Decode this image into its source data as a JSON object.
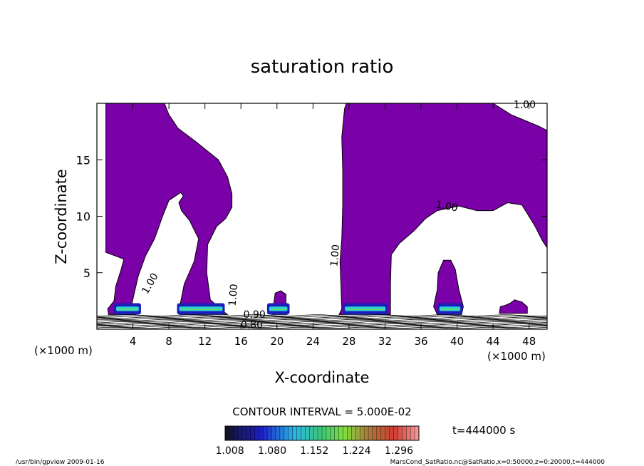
{
  "chart_data": {
    "type": "contour",
    "title": "saturation ratio",
    "xlabel": "X-coordinate",
    "ylabel": "Z-coordinate",
    "x_unit_left": "(×1000 m)",
    "x_unit_right": "(×1000 m)",
    "xlim": [
      0,
      50
    ],
    "ylim": [
      0,
      20
    ],
    "xticks": [
      4,
      8,
      12,
      16,
      20,
      24,
      28,
      32,
      36,
      40,
      44,
      48
    ],
    "yticks": [
      5,
      10,
      15
    ],
    "fill_color": "#7a00a8",
    "contour_labels": [
      "1.00",
      "1.00",
      "1.00",
      "1.00",
      "1.00",
      "0.90",
      "0.80"
    ],
    "contour_interval": "CONTOUR INTERVAL = 5.000E-02",
    "colorbar": {
      "ticks": [
        "1.008",
        "1.080",
        "1.152",
        "1.224",
        "1.296"
      ],
      "range": [
        1.0,
        1.33
      ]
    },
    "time_label": "t=444000 s",
    "saturated_regions": [
      [
        [
          1,
          20
        ],
        [
          7.5,
          20
        ],
        [
          8,
          19
        ],
        [
          9,
          17.8
        ],
        [
          11,
          16.6
        ],
        [
          13.5,
          15
        ],
        [
          14.5,
          13.5
        ],
        [
          15,
          12
        ],
        [
          15,
          10.8
        ],
        [
          14.3,
          9.8
        ],
        [
          13.3,
          9.1
        ],
        [
          12.3,
          7.5
        ],
        [
          12.2,
          5
        ],
        [
          12.6,
          2.6
        ],
        [
          14,
          1.6
        ],
        [
          14.5,
          1.3
        ],
        [
          9.2,
          1.3
        ],
        [
          9.2,
          2
        ],
        [
          9.7,
          4
        ],
        [
          10.8,
          6
        ],
        [
          11.3,
          8
        ],
        [
          10.3,
          9.6
        ],
        [
          9.4,
          10.5
        ],
        [
          9.1,
          11.2
        ],
        [
          9.6,
          11.8
        ],
        [
          9.3,
          12.1
        ],
        [
          8,
          11.4
        ],
        [
          7.3,
          10
        ],
        [
          6.4,
          8
        ],
        [
          5.4,
          6.5
        ],
        [
          4.6,
          4.7
        ],
        [
          4.1,
          3
        ],
        [
          3.8,
          1.9
        ],
        [
          4.3,
          1.3
        ],
        [
          1.3,
          1.3
        ],
        [
          1.2,
          1.8
        ],
        [
          1.9,
          2.5
        ],
        [
          2.1,
          3.8
        ],
        [
          2.7,
          5.3
        ],
        [
          3,
          6.2
        ],
        [
          1,
          6.8
        ]
      ],
      [
        [
          27.7,
          20
        ],
        [
          35,
          20
        ],
        [
          44,
          20
        ],
        [
          46,
          19
        ],
        [
          47.5,
          18.5
        ],
        [
          49,
          18
        ],
        [
          50,
          17.6
        ],
        [
          50,
          7.2
        ],
        [
          49.5,
          7.8
        ],
        [
          48.6,
          9.2
        ],
        [
          47.2,
          11
        ],
        [
          45.6,
          11.2
        ],
        [
          44,
          10.5
        ],
        [
          42.2,
          10.5
        ],
        [
          40.2,
          10.9
        ],
        [
          37.8,
          10.5
        ],
        [
          36.5,
          9.8
        ],
        [
          35.2,
          8.7
        ],
        [
          33.6,
          7.6
        ],
        [
          32.7,
          6.6
        ],
        [
          32.6,
          4
        ],
        [
          32.6,
          1.3
        ],
        [
          26.9,
          1.3
        ],
        [
          27.2,
          1.8
        ],
        [
          27.1,
          4
        ],
        [
          27,
          6
        ],
        [
          27.2,
          8
        ],
        [
          27.3,
          11
        ],
        [
          27.3,
          14
        ],
        [
          27.2,
          17
        ],
        [
          27.5,
          19.5
        ]
      ],
      [
        [
          20,
          1.3
        ],
        [
          21.1,
          1.3
        ],
        [
          21,
          1.8
        ],
        [
          21,
          3.1
        ],
        [
          20.4,
          3.4
        ],
        [
          19.8,
          3.2
        ],
        [
          19.6,
          2
        ],
        [
          19.3,
          1.8
        ],
        [
          19.4,
          1.3
        ]
      ],
      [
        [
          37.8,
          1.3
        ],
        [
          40.5,
          1.3
        ],
        [
          40.7,
          2
        ],
        [
          40.2,
          3.5
        ],
        [
          39.8,
          5.3
        ],
        [
          39.3,
          6.1
        ],
        [
          38.5,
          6.1
        ],
        [
          37.9,
          5
        ],
        [
          37.8,
          3.5
        ],
        [
          37.4,
          2
        ]
      ],
      [
        [
          44.7,
          1.4
        ],
        [
          47.8,
          1.4
        ],
        [
          47.8,
          2
        ],
        [
          47.2,
          2.4
        ],
        [
          46.4,
          2.6
        ],
        [
          45.9,
          2.3
        ],
        [
          45.3,
          2.1
        ],
        [
          44.8,
          2
        ]
      ]
    ],
    "cyan_bands": [
      [
        1.9,
        4.9
      ],
      [
        8.9,
        14.2
      ],
      [
        18.9,
        21.4
      ],
      [
        27.3,
        32.3
      ],
      [
        37.8,
        40.6
      ]
    ]
  },
  "footer": {
    "left": "/usr/bin/gpview   2009-01-16",
    "right": "MarsCond_SatRatio.nc@SatRatio,x=0:50000,z=0:20000,t=444000"
  }
}
